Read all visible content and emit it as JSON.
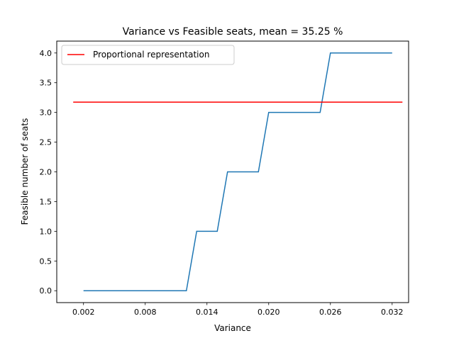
{
  "chart_data": {
    "type": "line",
    "title": "Variance vs Feasible seats, mean = 35.25 %",
    "xlabel": "Variance",
    "ylabel": "Feasible number of seats",
    "xlim": [
      -0.0006,
      0.0336
    ],
    "ylim": [
      -0.2,
      4.2
    ],
    "xticks": [
      0.002,
      0.008,
      0.014,
      0.02,
      0.026,
      0.032
    ],
    "xtick_labels": [
      "0.002",
      "0.008",
      "0.014",
      "0.020",
      "0.026",
      "0.032"
    ],
    "yticks": [
      0.0,
      0.5,
      1.0,
      1.5,
      2.0,
      2.5,
      3.0,
      3.5,
      4.0
    ],
    "ytick_labels": [
      "0.0",
      "0.5",
      "1.0",
      "1.5",
      "2.0",
      "2.5",
      "3.0",
      "3.5",
      "4.0"
    ],
    "grid": false,
    "legend_position": "top-left",
    "series": [
      {
        "color": "#1f77b4",
        "x": [
          0.002,
          0.012,
          0.013,
          0.015,
          0.016,
          0.019,
          0.02,
          0.025,
          0.026,
          0.032
        ],
        "y": [
          0,
          0,
          1,
          1,
          2,
          2,
          3,
          3,
          4,
          4
        ]
      },
      {
        "name": "Proportional representation",
        "color": "#ff0000",
        "x": [
          0.001,
          0.033
        ],
        "y": [
          3.1725,
          3.1725
        ]
      }
    ]
  }
}
